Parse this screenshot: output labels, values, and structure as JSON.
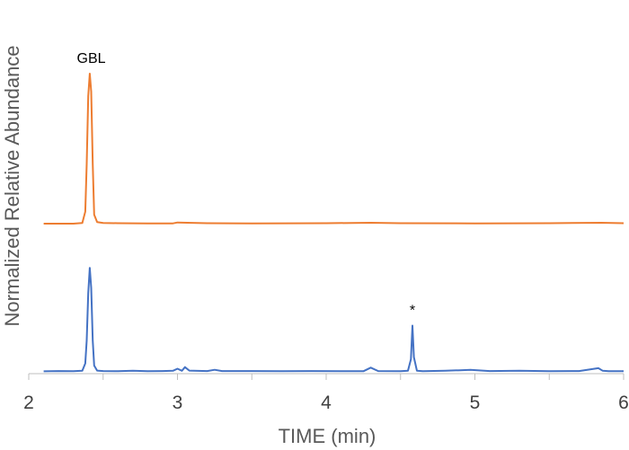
{
  "chart_data": {
    "type": "line",
    "xlabel": "TIME (min)",
    "ylabel": "Normalized Relative Abundance",
    "xlim": [
      2,
      6
    ],
    "x_ticks": [
      "2",
      "3",
      "4",
      "5",
      "6"
    ],
    "grid": false,
    "legend": "none",
    "annotations": [
      {
        "text": "GBL",
        "x": 2.42
      },
      {
        "text": "*",
        "x": 4.58
      }
    ],
    "series": [
      {
        "color": "#ED7D31",
        "x": [
          2.1,
          2.2,
          2.3,
          2.36,
          2.38,
          2.39,
          2.4,
          2.41,
          2.42,
          2.43,
          2.44,
          2.46,
          2.5,
          2.6,
          2.8,
          2.97,
          3.0,
          3.2,
          3.5,
          4.0,
          4.3,
          4.5,
          5.0,
          5.5,
          5.85,
          6.0
        ],
        "y": [
          0,
          0,
          0,
          0.005,
          0.08,
          0.4,
          0.85,
          1.0,
          0.88,
          0.4,
          0.06,
          0.01,
          0.005,
          0.003,
          0.002,
          0.002,
          0.008,
          0.003,
          0.002,
          0.003,
          0.006,
          0.003,
          0.002,
          0.003,
          0.006,
          0.003
        ]
      },
      {
        "color": "#4472C4",
        "x": [
          2.1,
          2.2,
          2.3,
          2.36,
          2.38,
          2.39,
          2.4,
          2.41,
          2.42,
          2.43,
          2.44,
          2.46,
          2.5,
          2.6,
          2.7,
          2.8,
          2.9,
          2.97,
          3.0,
          3.03,
          3.05,
          3.08,
          3.2,
          3.25,
          3.3,
          3.5,
          3.7,
          3.9,
          4.1,
          4.25,
          4.3,
          4.35,
          4.5,
          4.55,
          4.57,
          4.58,
          4.59,
          4.61,
          4.65,
          4.8,
          4.9,
          4.97,
          5.1,
          5.3,
          5.5,
          5.7,
          5.83,
          5.86,
          5.9,
          6.0
        ],
        "y": [
          0.005,
          0.008,
          0.006,
          0.01,
          0.08,
          0.3,
          0.75,
          0.99,
          0.8,
          0.3,
          0.06,
          0.012,
          0.008,
          0.006,
          0.01,
          0.006,
          0.008,
          0.01,
          0.03,
          0.01,
          0.045,
          0.012,
          0.008,
          0.02,
          0.008,
          0.008,
          0.006,
          0.008,
          0.006,
          0.006,
          0.04,
          0.008,
          0.006,
          0.01,
          0.12,
          0.44,
          0.14,
          0.01,
          0.006,
          0.01,
          0.015,
          0.02,
          0.008,
          0.01,
          0.006,
          0.008,
          0.035,
          0.01,
          0.006,
          0.006
        ]
      }
    ]
  }
}
